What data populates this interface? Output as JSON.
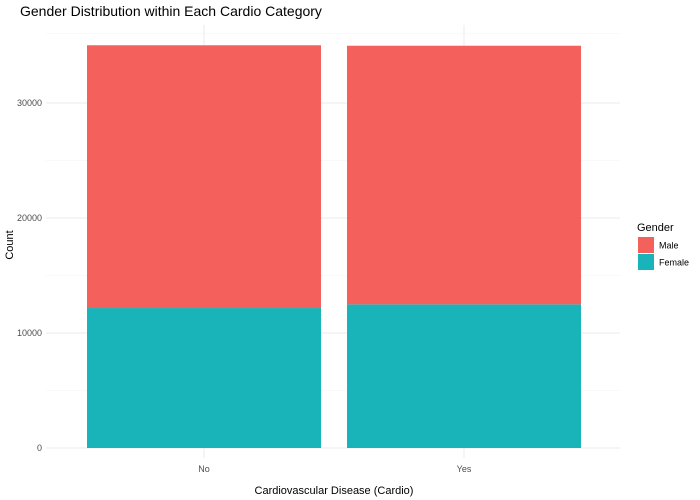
{
  "chart_data": {
    "type": "bar",
    "stacked": true,
    "title": "Gender Distribution within Each Cardio Category",
    "xlabel": "Cardiovascular Disease (Cardio)",
    "ylabel": "Count",
    "categories": [
      "No",
      "Yes"
    ],
    "series": [
      {
        "name": "Female",
        "color": "#19B4BA",
        "values": [
          12170,
          12490
        ]
      },
      {
        "name": "Male",
        "color": "#F4605B",
        "values": [
          22850,
          22490
        ]
      }
    ],
    "ylim": [
      0,
      35000
    ],
    "yticks": [
      0,
      10000,
      20000,
      30000
    ],
    "grid": true,
    "legend": {
      "title": "Gender",
      "position": "right",
      "items": [
        {
          "label": "Male",
          "color": "#F4605B"
        },
        {
          "label": "Female",
          "color": "#19B4BA"
        }
      ]
    }
  }
}
